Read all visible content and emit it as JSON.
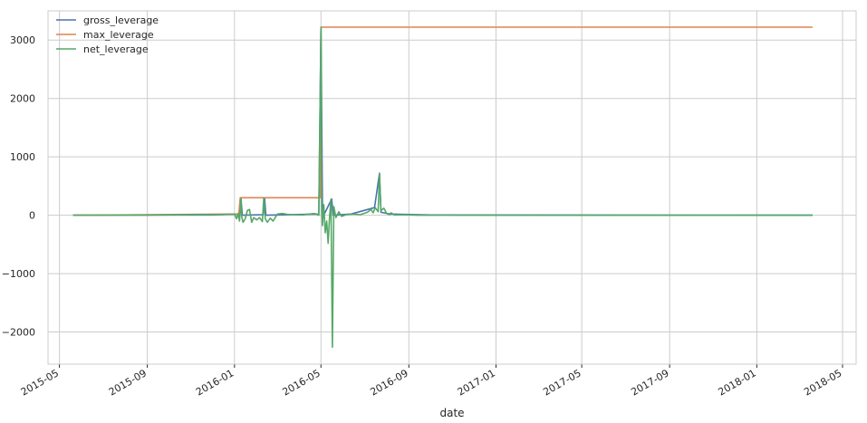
{
  "chart_data": {
    "type": "line",
    "title": "",
    "xlabel": "date",
    "ylabel": "",
    "grid": true,
    "legend_position": "top-left",
    "x_ticks": [
      "2015-05",
      "2015-09",
      "2016-01",
      "2016-05",
      "2016-09",
      "2017-01",
      "2017-05",
      "2017-09",
      "2018-01",
      "2018-05"
    ],
    "y_ticks": [
      -2000,
      -1000,
      0,
      1000,
      2000,
      3000
    ],
    "y_tick_labels": [
      "−2000",
      "−1000",
      "0",
      "1000",
      "2000",
      "3000"
    ],
    "xlim": [
      "2015-04-15",
      "2018-05-20"
    ],
    "ylim": [
      -2550,
      3500
    ],
    "series": [
      {
        "name": "gross_leverage",
        "color": "#4c72b0",
        "points": [
          [
            "2015-05-20",
            0
          ],
          [
            "2015-12-01",
            5
          ],
          [
            "2016-01-08",
            20
          ],
          [
            "2016-01-10",
            300
          ],
          [
            "2016-01-12",
            0
          ],
          [
            "2016-02-10",
            10
          ],
          [
            "2016-02-12",
            300
          ],
          [
            "2016-02-14",
            0
          ],
          [
            "2016-04-28",
            20
          ],
          [
            "2016-05-01",
            3220
          ],
          [
            "2016-05-03",
            200
          ],
          [
            "2016-05-05",
            0
          ],
          [
            "2016-05-16",
            280
          ],
          [
            "2016-05-18",
            0
          ],
          [
            "2016-06-12",
            20
          ],
          [
            "2016-07-15",
            130
          ],
          [
            "2016-07-22",
            720
          ],
          [
            "2016-07-24",
            50
          ],
          [
            "2016-08-06",
            20
          ],
          [
            "2016-10-01",
            5
          ],
          [
            "2018-03-20",
            0
          ]
        ]
      },
      {
        "name": "max_leverage",
        "color": "#dd8452",
        "points": [
          [
            "2015-05-20",
            0
          ],
          [
            "2016-01-07",
            20
          ],
          [
            "2016-01-09",
            300
          ],
          [
            "2016-04-30",
            300
          ],
          [
            "2016-05-01",
            3220
          ],
          [
            "2018-03-20",
            3220
          ]
        ]
      },
      {
        "name": "net_leverage",
        "color": "#55a868",
        "points": [
          [
            "2015-05-20",
            0
          ],
          [
            "2015-07-01",
            2
          ],
          [
            "2015-09-01",
            3
          ],
          [
            "2015-10-15",
            8
          ],
          [
            "2015-11-20",
            12
          ],
          [
            "2015-12-10",
            10
          ],
          [
            "2016-01-01",
            20
          ],
          [
            "2016-01-04",
            -60
          ],
          [
            "2016-01-06",
            30
          ],
          [
            "2016-01-08",
            -100
          ],
          [
            "2016-01-10",
            290
          ],
          [
            "2016-01-11",
            -20
          ],
          [
            "2016-01-13",
            -120
          ],
          [
            "2016-01-16",
            -60
          ],
          [
            "2016-01-19",
            80
          ],
          [
            "2016-01-22",
            100
          ],
          [
            "2016-01-25",
            -120
          ],
          [
            "2016-01-28",
            -40
          ],
          [
            "2016-02-01",
            -80
          ],
          [
            "2016-02-05",
            -40
          ],
          [
            "2016-02-09",
            -110
          ],
          [
            "2016-02-11",
            300
          ],
          [
            "2016-02-13",
            -60
          ],
          [
            "2016-02-16",
            -120
          ],
          [
            "2016-02-20",
            -50
          ],
          [
            "2016-02-24",
            -100
          ],
          [
            "2016-02-27",
            -40
          ],
          [
            "2016-03-01",
            20
          ],
          [
            "2016-03-08",
            30
          ],
          [
            "2016-03-15",
            15
          ],
          [
            "2016-03-25",
            10
          ],
          [
            "2016-04-05",
            5
          ],
          [
            "2016-04-15",
            20
          ],
          [
            "2016-04-22",
            30
          ],
          [
            "2016-04-28",
            0
          ],
          [
            "2016-05-01",
            3220
          ],
          [
            "2016-05-02",
            100
          ],
          [
            "2016-05-03",
            -180
          ],
          [
            "2016-05-05",
            180
          ],
          [
            "2016-05-07",
            -300
          ],
          [
            "2016-05-09",
            -100
          ],
          [
            "2016-05-11",
            -480
          ],
          [
            "2016-05-13",
            -50
          ],
          [
            "2016-05-15",
            270
          ],
          [
            "2016-05-17",
            -2260
          ],
          [
            "2016-05-19",
            150
          ],
          [
            "2016-05-22",
            -40
          ],
          [
            "2016-05-26",
            60
          ],
          [
            "2016-05-30",
            -20
          ],
          [
            "2016-06-05",
            10
          ],
          [
            "2016-06-15",
            20
          ],
          [
            "2016-06-25",
            10
          ],
          [
            "2016-07-05",
            50
          ],
          [
            "2016-07-10",
            100
          ],
          [
            "2016-07-13",
            40
          ],
          [
            "2016-07-16",
            130
          ],
          [
            "2016-07-20",
            60
          ],
          [
            "2016-07-22",
            710
          ],
          [
            "2016-07-24",
            80
          ],
          [
            "2016-07-28",
            120
          ],
          [
            "2016-08-01",
            30
          ],
          [
            "2016-08-05",
            10
          ],
          [
            "2016-08-07",
            40
          ],
          [
            "2016-08-12",
            5
          ],
          [
            "2016-08-25",
            8
          ],
          [
            "2016-09-15",
            0
          ],
          [
            "2016-10-20",
            2
          ],
          [
            "2017-01-01",
            0
          ],
          [
            "2017-06-01",
            0
          ],
          [
            "2018-03-20",
            0
          ]
        ]
      }
    ]
  }
}
